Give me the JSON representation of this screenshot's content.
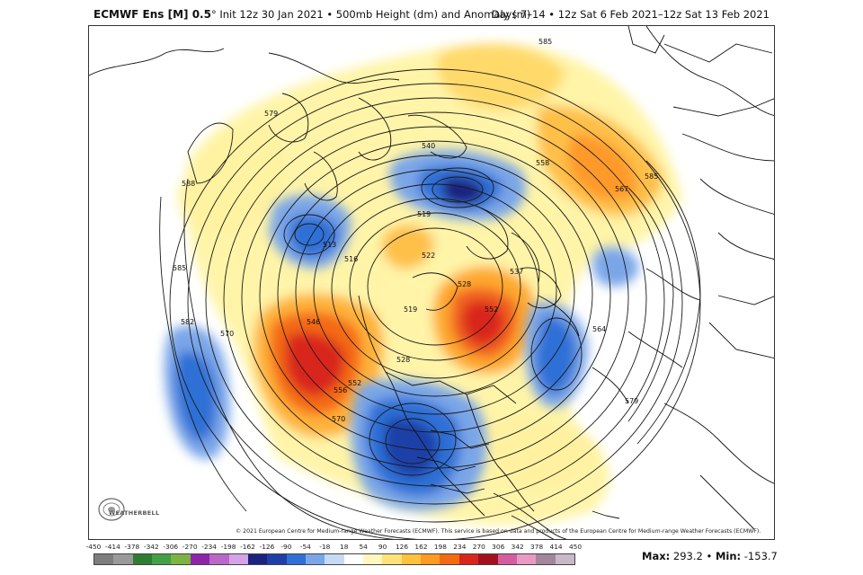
{
  "header": {
    "model": "ECMWF Ens [M] 0.5",
    "degree": "°",
    "init": "Init 12z 30 Jan 2021",
    "bullet": "•",
    "product": "500mb Height (dm) and Anomaly (m)",
    "valid": "Days 7–14 • 12z Sat 6 Feb 2021–12z Sat 13 Feb 2021"
  },
  "map": {
    "contour_labels": [
      "585",
      "579",
      "588",
      "585",
      "582",
      "570",
      "540",
      "519",
      "516",
      "513",
      "522",
      "519",
      "528",
      "546",
      "552",
      "556",
      "570",
      "537",
      "528",
      "552",
      "564",
      "579",
      "585",
      "567",
      "558"
    ]
  },
  "logo": {
    "text": "WEATHERBELL"
  },
  "copyright": "© 2021 European Centre for Medium-range Weather Forecasts (ECMWF). This service is based on data and products of the European Centre for Medium-range Weather Forecasts (ECMWF).",
  "colorbar": {
    "labels": [
      "-450",
      "-414",
      "-378",
      "-342",
      "-306",
      "-270",
      "-234",
      "-198",
      "-162",
      "-126",
      "-90",
      "-54",
      "-18",
      "18",
      "54",
      "90",
      "126",
      "162",
      "198",
      "234",
      "270",
      "306",
      "342",
      "378",
      "414",
      "450"
    ],
    "colors": [
      "#7d7d7d",
      "#9a9a9a",
      "#2e7d32",
      "#43a047",
      "#7cb342",
      "#8e24aa",
      "#ba68c8",
      "#d6a3e6",
      "#1a237e",
      "#1e3fa8",
      "#2f6fd6",
      "#7aa6e8",
      "#c6daf4",
      "#ffffff",
      "#fff7c0",
      "#ffe27a",
      "#ffc23d",
      "#ff9a20",
      "#f46a12",
      "#d9261c",
      "#a50f1e",
      "#d45da0",
      "#e89ac4",
      "#a3869a",
      "#c9b8c8"
    ]
  },
  "stats": {
    "max_label": "Max",
    "max_value": "293.2",
    "sep": "•",
    "min_label": "Min",
    "min_value": "-153.7"
  }
}
